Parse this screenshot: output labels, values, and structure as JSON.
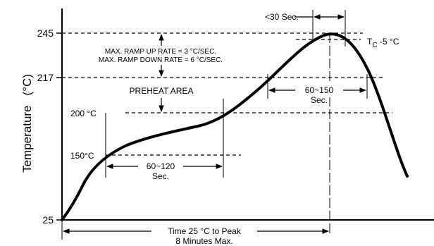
{
  "diagram": {
    "y_axis_label": "Temperature",
    "y_axis_unit": "(°C)",
    "y_ticks": [
      "245",
      "217",
      "25"
    ],
    "labels": {
      "lt30": "<30 Sec.",
      "tc_main": "T",
      "tc_sub": "C",
      "tc_rest": " -5 °C",
      "ramp_up": "MAX. RAMP UP RATE = 3 °C/SEC.",
      "ramp_down": "MAX. RAMP DOWN RATE = 6 °C/SEC.",
      "preheat": "PREHEAT AREA",
      "t200": "200 °C",
      "t150": "150°C",
      "d60_120": "60~120",
      "d60_120_sec": "Sec.",
      "d60_150": "60~150",
      "d60_150_sec": "Sec.",
      "time_line1": "Time 25 °C to Peak",
      "time_line2": "8 Minutes Max."
    }
  }
}
